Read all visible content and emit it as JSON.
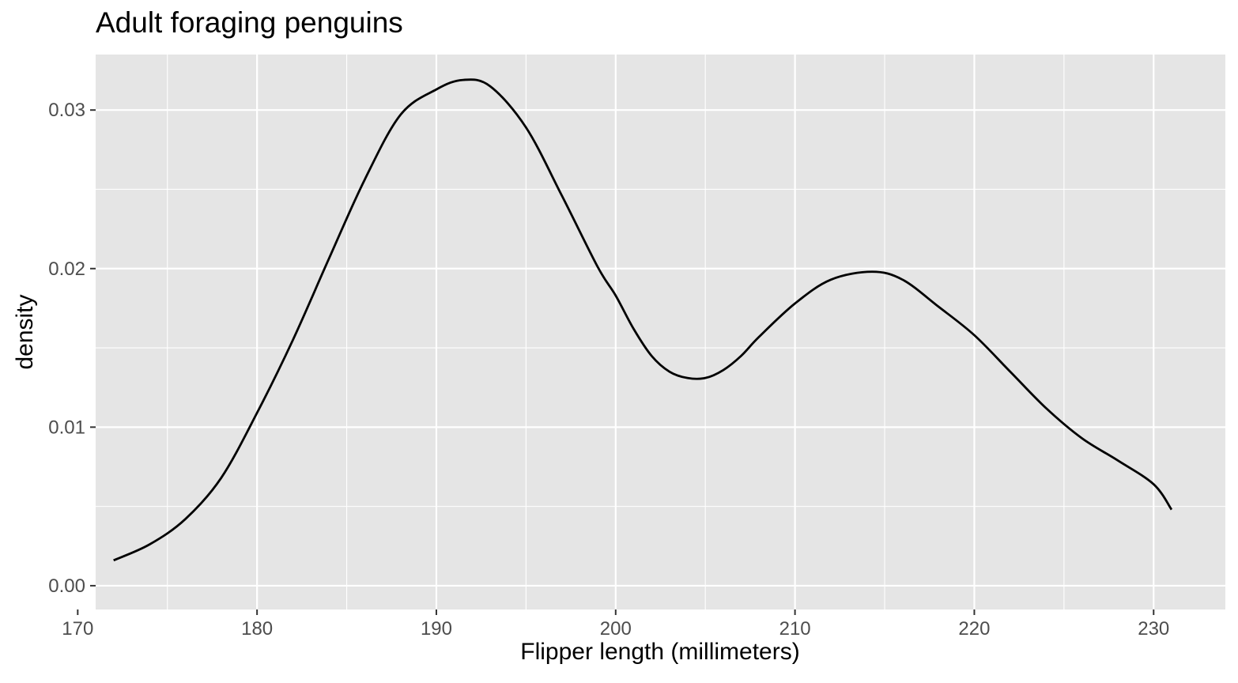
{
  "chart_data": {
    "type": "line",
    "title": "Adult foraging penguins",
    "xlabel": "Flipper length (millimeters)",
    "ylabel": "density",
    "xlim": [
      171,
      234
    ],
    "ylim": [
      -0.0015,
      0.0335
    ],
    "x_ticks": [
      170,
      180,
      190,
      200,
      210,
      220,
      230
    ],
    "y_ticks": [
      0.0,
      0.01,
      0.02,
      0.03
    ],
    "x_tick_labels": [
      "170",
      "180",
      "190",
      "200",
      "210",
      "220",
      "230"
    ],
    "y_tick_labels": [
      "0.00",
      "0.01",
      "0.02",
      "0.03"
    ],
    "grid": true,
    "series": [
      {
        "color": "#000000",
        "x": [
          172,
          174,
          176,
          178,
          180,
          182,
          184,
          186,
          188,
          190,
          191.5,
          193,
          195,
          197,
          199,
          200,
          201,
          202,
          203,
          204,
          205,
          206,
          207,
          208,
          210,
          212,
          214.3,
          216,
          218,
          220,
          222,
          224,
          226,
          228,
          230,
          231
        ],
        "y": [
          0.0016,
          0.0026,
          0.0042,
          0.0068,
          0.0109,
          0.0155,
          0.0206,
          0.0256,
          0.0297,
          0.0313,
          0.0319,
          0.0315,
          0.0289,
          0.0246,
          0.0201,
          0.0183,
          0.0162,
          0.0145,
          0.0135,
          0.0131,
          0.0131,
          0.0136,
          0.0145,
          0.0157,
          0.0178,
          0.0193,
          0.0198,
          0.0193,
          0.0176,
          0.0158,
          0.0135,
          0.0112,
          0.0093,
          0.0079,
          0.0064,
          0.0048
        ]
      }
    ]
  },
  "colors": {
    "panel_background": "#e5e5e5",
    "grid": "#ffffff",
    "line": "#000000",
    "tick_text": "#4d4d4d"
  }
}
